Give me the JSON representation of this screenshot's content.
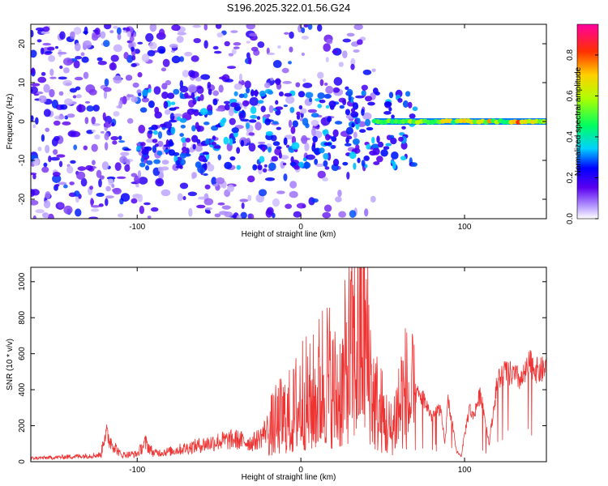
{
  "title": "S196.2025.322.01.56.G24",
  "chart_data": [
    {
      "type": "heatmap",
      "xlabel": "Height of straight line (km)",
      "ylabel": "Frequency (Hz)",
      "xlim": [
        -165,
        150
      ],
      "ylim": [
        -25,
        25
      ],
      "xticks": [
        -100,
        0,
        100
      ],
      "yticks": [
        -20,
        -10,
        0,
        10,
        20
      ],
      "colorbar": {
        "label": "Normalized spectral amplitude",
        "range": [
          0,
          0.95
        ],
        "ticks": [
          0.0,
          0.2,
          0.4,
          0.6,
          0.8
        ],
        "tick_labels": [
          "0.0",
          "0.2",
          "0.4",
          "0.6",
          "0.8"
        ]
      },
      "features": [
        {
          "name": "broadband noise",
          "x_range": [
            -165,
            45
          ],
          "freq_range": [
            -25,
            25
          ],
          "amplitude": [
            0.0,
            0.25
          ]
        },
        {
          "name": "scattered blobs",
          "x_range": [
            -100,
            70
          ],
          "freq_range": [
            -12,
            8
          ],
          "amplitude": [
            0.15,
            0.35
          ]
        },
        {
          "name": "carrier line",
          "x_range": [
            45,
            150
          ],
          "freq": 0,
          "amplitude": [
            0.4,
            0.92
          ]
        }
      ]
    },
    {
      "type": "line",
      "xlabel": "Height of straight line (km)",
      "ylabel": "SNR (10 * v/v)",
      "xlim": [
        -165,
        150
      ],
      "ylim": [
        0,
        1080
      ],
      "xticks": [
        -100,
        0,
        100
      ],
      "yticks": [
        0,
        200,
        400,
        600,
        800,
        1000
      ],
      "color": "#ee3333",
      "series": [
        {
          "name": "SNR",
          "x": [
            -165,
            -150,
            -140,
            -130,
            -122,
            -120,
            -110,
            -100,
            -95,
            -90,
            -80,
            -70,
            -60,
            -50,
            -40,
            -30,
            -25,
            -20,
            -15,
            -10,
            -5,
            0,
            5,
            10,
            15,
            20,
            25,
            30,
            35,
            38,
            40,
            45,
            50,
            55,
            60,
            62,
            65,
            70,
            75,
            80,
            85,
            88,
            90,
            95,
            98,
            100,
            103,
            105,
            110,
            115,
            120,
            125,
            130,
            135,
            140,
            145,
            150
          ],
          "y": [
            20,
            25,
            30,
            35,
            40,
            170,
            40,
            45,
            110,
            50,
            60,
            80,
            100,
            120,
            130,
            110,
            140,
            200,
            250,
            300,
            300,
            450,
            380,
            450,
            600,
            450,
            500,
            700,
            800,
            1000,
            800,
            400,
            300,
            200,
            400,
            450,
            450,
            380,
            350,
            250,
            300,
            100,
            350,
            60,
            30,
            150,
            300,
            250,
            380,
            100,
            450,
            500,
            480,
            450,
            550,
            500,
            520
          ]
        }
      ]
    }
  ]
}
